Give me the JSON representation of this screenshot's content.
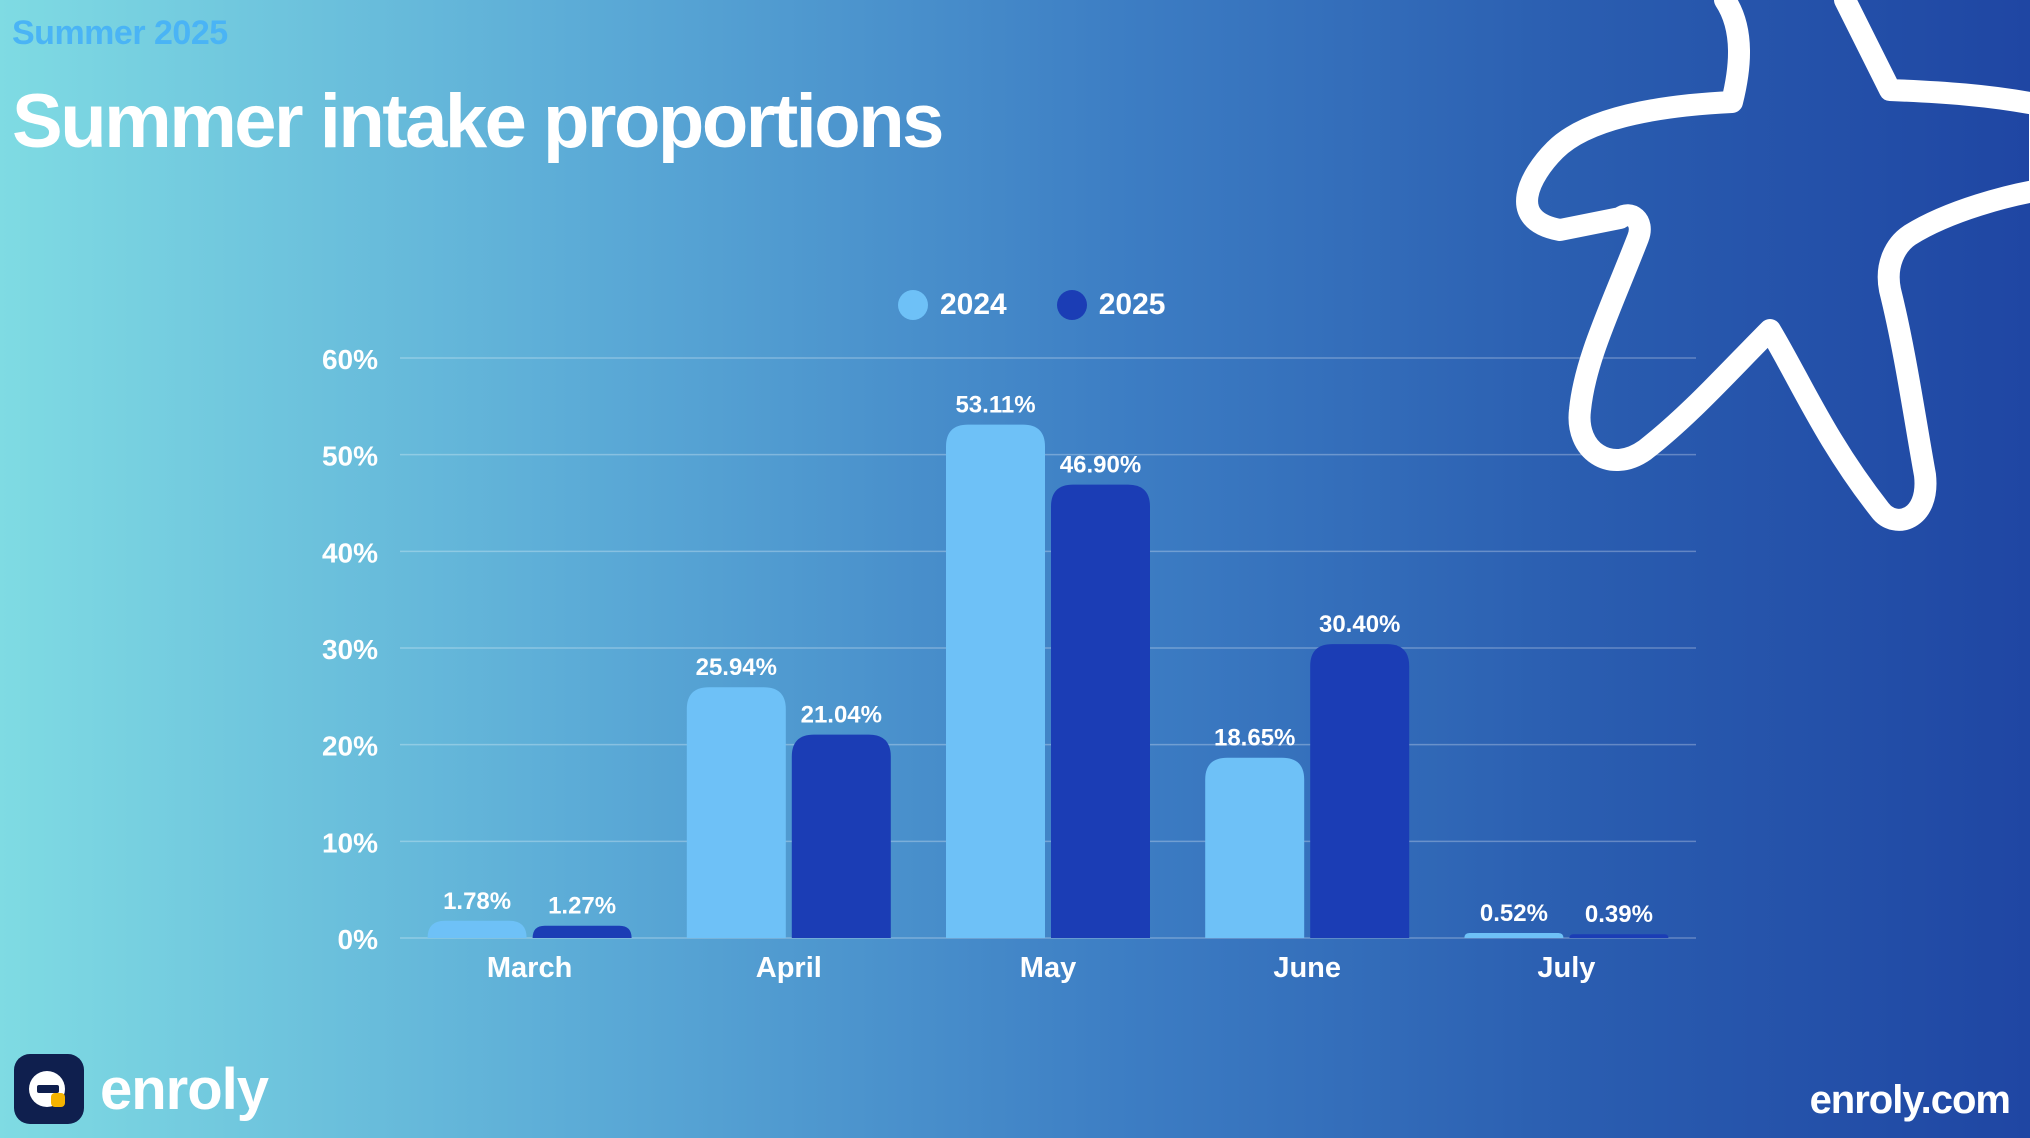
{
  "header": {
    "eyebrow": "Summer 2025",
    "title": "Summer intake proportions"
  },
  "footer": {
    "brand_name": "enroly",
    "website": "enroly.com"
  },
  "icons": {
    "brand_logo": "enroly-logo-icon",
    "decoration": "starfish-icon"
  },
  "colors": {
    "series_2024": "#6ec1f7",
    "series_2025": "#1b3db5",
    "eyebrow": "#4ab4f5"
  },
  "chart_data": {
    "type": "bar",
    "title": "",
    "xlabel": "",
    "ylabel": "",
    "categories": [
      "March",
      "April",
      "May",
      "June",
      "July"
    ],
    "series": [
      {
        "name": "2024",
        "values": [
          1.78,
          25.94,
          53.11,
          18.65,
          0.52
        ],
        "labels": [
          "1.78%",
          "25.94%",
          "53.11%",
          "18.65%",
          "0.52%"
        ]
      },
      {
        "name": "2025",
        "values": [
          1.27,
          21.04,
          46.9,
          30.4,
          0.39
        ],
        "labels": [
          "1.27%",
          "21.04%",
          "46.90%",
          "30.40%",
          "0.39%"
        ]
      }
    ],
    "ylim": [
      0,
      60
    ],
    "yticks": [
      0,
      10,
      20,
      30,
      40,
      50,
      60
    ],
    "ytick_labels": [
      "0%",
      "10%",
      "20%",
      "30%",
      "40%",
      "50%",
      "60%"
    ],
    "grid": true,
    "legend": "top-center"
  }
}
